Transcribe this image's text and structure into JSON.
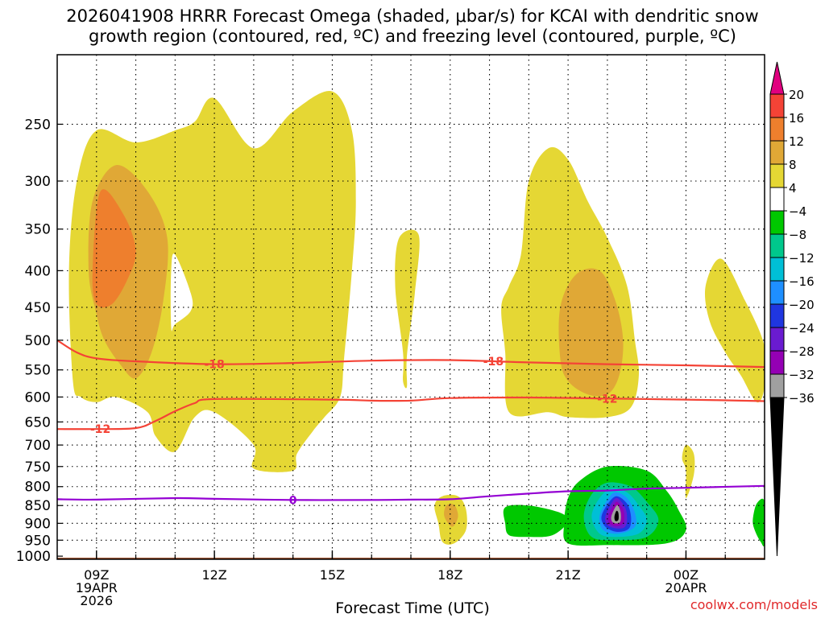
{
  "title": {
    "line1": "2026041908 HRRR Forecast Omega (shaded, μbar/s) for KCAI with dendritic snow",
    "line2": "growth region (contoured, red, ºC) and freezing level (contoured, purple, ºC)"
  },
  "footer": {
    "xlabel": "Forecast Time (UTC)",
    "credit": "coolwx.com/models"
  },
  "chart_data": {
    "type": "heatmap",
    "x_start": "2026-04-19 08Z",
    "x_end": "2026-04-20 02Z",
    "x_ticks": [
      {
        "hour": 9,
        "label": "09Z",
        "sub": [
          "19APR",
          "2026"
        ]
      },
      {
        "hour": 12,
        "label": "12Z",
        "sub": []
      },
      {
        "hour": 15,
        "label": "15Z",
        "sub": []
      },
      {
        "hour": 18,
        "label": "18Z",
        "sub": []
      },
      {
        "hour": 21,
        "label": "21Z",
        "sub": []
      },
      {
        "hour": 24,
        "label": "00Z",
        "sub": [
          "20APR"
        ]
      }
    ],
    "y_axis": {
      "scale": "log-pressure",
      "range_hpa": [
        1010,
        200
      ],
      "reversed": true
    },
    "y_ticks": [
      250,
      300,
      350,
      400,
      450,
      500,
      550,
      600,
      650,
      700,
      750,
      800,
      850,
      900,
      950,
      1000
    ],
    "grid": "dotted",
    "colorbar": {
      "labels": [
        "20",
        "16",
        "12",
        "8",
        "4",
        "−4",
        "−8",
        "−12",
        "−16",
        "−20",
        "−24",
        "−28",
        "−32",
        "−36"
      ],
      "colors": [
        "#e0007f",
        "#f44336",
        "#ee7f2d",
        "#e0a836",
        "#e5d734",
        "#ffffff",
        "#00c800",
        "#00c88c",
        "#00bfd6",
        "#1e8fff",
        "#1f36e0",
        "#6a1bd0",
        "#9400b4",
        "#a0a0a0",
        "#000000"
      ]
    },
    "contours": [
      {
        "name": "-18",
        "color": "#f44336",
        "points": [
          [
            8,
            500
          ],
          [
            8.5,
            520
          ],
          [
            9,
            530
          ],
          [
            10,
            535
          ],
          [
            12,
            540
          ],
          [
            14,
            538
          ],
          [
            16,
            534
          ],
          [
            18,
            533
          ],
          [
            20,
            537
          ],
          [
            22,
            540
          ],
          [
            24,
            542
          ],
          [
            26,
            545
          ]
        ],
        "labels": [
          [
            12,
            540
          ],
          [
            19.1,
            535
          ]
        ]
      },
      {
        "name": "-12",
        "color": "#f44336",
        "points": [
          [
            8,
            665
          ],
          [
            9,
            665
          ],
          [
            10,
            663
          ],
          [
            10.5,
            648
          ],
          [
            11,
            628
          ],
          [
            11.5,
            612
          ],
          [
            12,
            604
          ],
          [
            15,
            605
          ],
          [
            16,
            607
          ],
          [
            17,
            607
          ],
          [
            18,
            602
          ],
          [
            20,
            601
          ],
          [
            22,
            603
          ],
          [
            24,
            605
          ],
          [
            26,
            608
          ]
        ],
        "labels": [
          [
            9.1,
            665
          ],
          [
            22,
            603
          ]
        ]
      },
      {
        "name": "0",
        "color": "#9400d3",
        "points": [
          [
            8,
            833
          ],
          [
            9,
            834
          ],
          [
            11,
            830
          ],
          [
            12,
            832
          ],
          [
            14,
            835
          ],
          [
            16,
            835
          ],
          [
            17,
            834
          ],
          [
            18,
            833
          ],
          [
            19,
            825
          ],
          [
            20,
            818
          ],
          [
            21,
            812
          ],
          [
            22,
            810
          ],
          [
            23,
            805
          ],
          [
            24,
            803
          ],
          [
            26,
            798
          ]
        ],
        "labels": [
          [
            14,
            835
          ]
        ]
      }
    ],
    "omega_regions": [
      {
        "value": "4",
        "color": "#e5d734",
        "points": [
          [
            8.4,
            570
          ],
          [
            8.3,
            400
          ],
          [
            8.5,
            300
          ],
          [
            9,
            255
          ],
          [
            10,
            265
          ],
          [
            11,
            255
          ],
          [
            11.5,
            248
          ],
          [
            12,
            230
          ],
          [
            13,
            270
          ],
          [
            14,
            240
          ],
          [
            15,
            225
          ],
          [
            15.5,
            255
          ],
          [
            15.6,
            320
          ],
          [
            15.5,
            400
          ],
          [
            15.3,
            530
          ],
          [
            15.2,
            600
          ],
          [
            14.8,
            640
          ],
          [
            14.5,
            670
          ],
          [
            14.1,
            720
          ],
          [
            14,
            760
          ],
          [
            13,
            755
          ],
          [
            13,
            700
          ],
          [
            12,
            630
          ],
          [
            11.5,
            640
          ],
          [
            11,
            715
          ],
          [
            10.5,
            680
          ],
          [
            10.3,
            630
          ],
          [
            9.5,
            600
          ],
          [
            9,
            610
          ],
          [
            8.6,
            600
          ]
        ]
      },
      {
        "value": "8",
        "color": "#e0a836",
        "points": [
          [
            9,
            460
          ],
          [
            8.8,
            400
          ],
          [
            8.9,
            320
          ],
          [
            9.5,
            285
          ],
          [
            10.3,
            310
          ],
          [
            10.8,
            360
          ],
          [
            10.7,
            440
          ],
          [
            10.4,
            520
          ],
          [
            10,
            565
          ],
          [
            9.6,
            540
          ],
          [
            9.2,
            500
          ]
        ]
      },
      {
        "value": "12",
        "color": "#ee7f2d",
        "points": [
          [
            9,
            445
          ],
          [
            8.9,
            400
          ],
          [
            9.1,
            310
          ],
          [
            9.7,
            335
          ],
          [
            10,
            375
          ],
          [
            9.8,
            410
          ],
          [
            9.4,
            445
          ]
        ]
      },
      {
        "value": "-4",
        "color": "#ffffff",
        "points": [
          [
            10.9,
            480
          ],
          [
            10.9,
            400
          ],
          [
            11,
            380
          ],
          [
            11.4,
            430
          ],
          [
            11.4,
            455
          ],
          [
            11,
            475
          ]
        ]
      },
      {
        "value": "4",
        "color": "#e5d734",
        "points": [
          [
            16.8,
            520
          ],
          [
            16.6,
            420
          ],
          [
            16.7,
            360
          ],
          [
            17.2,
            357
          ],
          [
            17.1,
            430
          ],
          [
            16.9,
            525
          ],
          [
            16.9,
            580
          ],
          [
            16.8,
            570
          ]
        ]
      },
      {
        "value": "4",
        "color": "#e5d734",
        "points": [
          [
            19.5,
            630
          ],
          [
            19.4,
            520
          ],
          [
            19.3,
            450
          ],
          [
            19.5,
            420
          ],
          [
            19.8,
            380
          ],
          [
            20,
            300
          ],
          [
            20.5,
            270
          ],
          [
            21,
            280
          ],
          [
            21.5,
            320
          ],
          [
            22,
            360
          ],
          [
            22.5,
            420
          ],
          [
            22.7,
            500
          ],
          [
            22.8,
            560
          ],
          [
            22.6,
            620
          ],
          [
            22,
            640
          ],
          [
            21,
            640
          ],
          [
            20.5,
            630
          ]
        ]
      },
      {
        "value": "8",
        "color": "#e0a836",
        "points": [
          [
            20.8,
            530
          ],
          [
            20.8,
            450
          ],
          [
            21.2,
            405
          ],
          [
            21.8,
            400
          ],
          [
            22.2,
            440
          ],
          [
            22.4,
            500
          ],
          [
            22.3,
            560
          ],
          [
            22,
            595
          ],
          [
            21.5,
            595
          ],
          [
            21,
            570
          ]
        ]
      },
      {
        "value": "4",
        "color": "#e5d734",
        "points": [
          [
            24.6,
            470
          ],
          [
            24.5,
            420
          ],
          [
            24.9,
            385
          ],
          [
            25.5,
            440
          ],
          [
            26,
            510
          ],
          [
            26,
            580
          ],
          [
            25.8,
            610
          ],
          [
            25.4,
            560
          ],
          [
            25,
            520
          ]
        ]
      },
      {
        "value": "4",
        "color": "#e5d734",
        "points": [
          [
            24,
            760
          ],
          [
            23.9,
            730
          ],
          [
            24,
            700
          ],
          [
            24.2,
            720
          ],
          [
            24.2,
            770
          ],
          [
            24,
            830
          ]
        ]
      },
      {
        "value": "4",
        "color": "#e5d734",
        "points": [
          [
            17.7,
            900
          ],
          [
            17.6,
            850
          ],
          [
            17.8,
            825
          ],
          [
            18.2,
            825
          ],
          [
            18.4,
            860
          ],
          [
            18.4,
            920
          ],
          [
            18.1,
            960
          ],
          [
            17.8,
            955
          ]
        ]
      },
      {
        "value": "8",
        "color": "#e0a836",
        "points": [
          [
            17.85,
            880
          ],
          [
            17.9,
            850
          ],
          [
            18.1,
            848
          ],
          [
            18.2,
            880
          ],
          [
            18.05,
            910
          ]
        ]
      },
      {
        "value": "-4",
        "color": "#00c800",
        "points": [
          [
            19.4,
            900
          ],
          [
            19.4,
            855
          ],
          [
            20,
            850
          ],
          [
            20.8,
            870
          ],
          [
            21,
            895
          ],
          [
            20.6,
            935
          ],
          [
            20,
            940
          ],
          [
            19.5,
            935
          ]
        ]
      },
      {
        "value": "-4",
        "color": "#00c800",
        "points": [
          [
            21,
            830
          ],
          [
            21.3,
            785
          ],
          [
            22,
            750
          ],
          [
            23,
            760
          ],
          [
            23.5,
            810
          ],
          [
            23.8,
            860
          ],
          [
            24,
            920
          ],
          [
            23.5,
            960
          ],
          [
            22,
            965
          ],
          [
            21,
            960
          ],
          [
            20.9,
            900
          ]
        ]
      },
      {
        "value": "-8",
        "color": "#00c88c",
        "points": [
          [
            21.4,
            880
          ],
          [
            21.6,
            820
          ],
          [
            22,
            790
          ],
          [
            22.6,
            800
          ],
          [
            23,
            840
          ],
          [
            23.3,
            890
          ],
          [
            23,
            940
          ],
          [
            22.2,
            950
          ],
          [
            21.6,
            940
          ]
        ]
      },
      {
        "value": "-12",
        "color": "#00bfd6",
        "points": [
          [
            21.6,
            880
          ],
          [
            21.8,
            830
          ],
          [
            22.1,
            805
          ],
          [
            22.5,
            815
          ],
          [
            22.8,
            850
          ],
          [
            23,
            890
          ],
          [
            22.8,
            930
          ],
          [
            22.2,
            940
          ],
          [
            21.8,
            930
          ]
        ]
      },
      {
        "value": "-16",
        "color": "#1e8fff",
        "points": [
          [
            21.8,
            880
          ],
          [
            22,
            835
          ],
          [
            22.2,
            815
          ],
          [
            22.5,
            830
          ],
          [
            22.7,
            870
          ],
          [
            22.7,
            910
          ],
          [
            22.3,
            930
          ],
          [
            21.9,
            920
          ]
        ]
      },
      {
        "value": "-20",
        "color": "#1f36e0",
        "points": [
          [
            21.85,
            880
          ],
          [
            22.05,
            840
          ],
          [
            22.25,
            825
          ],
          [
            22.5,
            845
          ],
          [
            22.6,
            880
          ],
          [
            22.55,
            915
          ],
          [
            22.25,
            925
          ],
          [
            21.95,
            910
          ]
        ]
      },
      {
        "value": "-24",
        "color": "#6a1bd0",
        "points": [
          [
            21.95,
            880
          ],
          [
            22.1,
            845
          ],
          [
            22.25,
            830
          ],
          [
            22.45,
            855
          ],
          [
            22.5,
            885
          ],
          [
            22.45,
            910
          ],
          [
            22.25,
            915
          ],
          [
            22,
            905
          ]
        ]
      },
      {
        "value": "-28",
        "color": "#9400b4",
        "points": [
          [
            22.02,
            880
          ],
          [
            22.15,
            850
          ],
          [
            22.25,
            840
          ],
          [
            22.4,
            860
          ],
          [
            22.43,
            890
          ],
          [
            22.35,
            905
          ],
          [
            22.2,
            908
          ],
          [
            22.05,
            900
          ]
        ]
      },
      {
        "value": "-32",
        "color": "#a0a0a0",
        "points": [
          [
            22.1,
            880
          ],
          [
            22.2,
            855
          ],
          [
            22.27,
            850
          ],
          [
            22.34,
            870
          ],
          [
            22.33,
            895
          ],
          [
            22.22,
            900
          ],
          [
            22.12,
            895
          ]
        ]
      },
      {
        "value": "-36",
        "color": "#000000",
        "points": [
          [
            22.18,
            880
          ],
          [
            22.23,
            865
          ],
          [
            22.28,
            870
          ],
          [
            22.28,
            890
          ],
          [
            22.2,
            893
          ]
        ]
      },
      {
        "value": "-4",
        "color": "#00c800",
        "points": [
          [
            25.7,
            890
          ],
          [
            25.8,
            845
          ],
          [
            26,
            840
          ],
          [
            26,
            960
          ],
          [
            25.9,
            955
          ],
          [
            25.75,
            920
          ]
        ]
      }
    ],
    "ground": {
      "color": "#a0522d",
      "from_hpa": 1005
    }
  }
}
